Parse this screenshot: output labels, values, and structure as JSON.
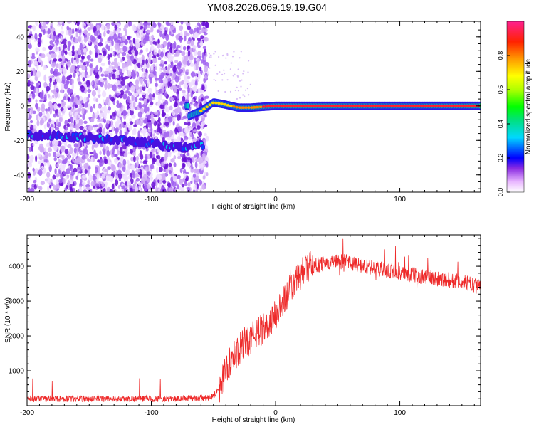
{
  "title": "YM08.2026.069.19.19.G04",
  "chart_data": [
    {
      "type": "heatmap",
      "xlabel": "Height of straight line (km)",
      "ylabel": "Frequency (Hz)",
      "xlim": [
        -200,
        165
      ],
      "ylim": [
        -50,
        49
      ],
      "xticks": [
        -200,
        -100,
        0,
        100
      ],
      "yticks": [
        -40,
        -20,
        0,
        20,
        40
      ],
      "colorbar": {
        "label": "Normalized spectral amplitude",
        "range": [
          0,
          1
        ],
        "ticks": [
          0.0,
          0.2,
          0.4,
          0.6,
          0.8
        ],
        "tick_labels": [
          "0.0",
          "0.2",
          "0.4",
          "0.6",
          "0.8"
        ]
      },
      "ridge": [
        {
          "x": -200,
          "y": -17
        },
        {
          "x": -180,
          "y": -17
        },
        {
          "x": -160,
          "y": -18
        },
        {
          "x": -140,
          "y": -19
        },
        {
          "x": -120,
          "y": -20
        },
        {
          "x": -100,
          "y": -22
        },
        {
          "x": -80,
          "y": -24
        },
        {
          "x": -62,
          "y": -23
        },
        {
          "x": -70,
          "y": -6
        },
        {
          "x": -60,
          "y": -3
        },
        {
          "x": -50,
          "y": 2
        },
        {
          "x": -42,
          "y": 1
        },
        {
          "x": -30,
          "y": -1
        },
        {
          "x": -20,
          "y": -1
        },
        {
          "x": 0,
          "y": 0
        },
        {
          "x": 165,
          "y": 0
        }
      ]
    },
    {
      "type": "line",
      "xlabel": "Height of straight line (km)",
      "ylabel": "SNR (10 * v/v)",
      "xlim": [
        -200,
        165
      ],
      "ylim": [
        0,
        4900
      ],
      "xticks": [
        -200,
        -100,
        0,
        100
      ],
      "yticks": [
        1000,
        2000,
        3000,
        4000
      ],
      "series": [
        {
          "name": "SNR",
          "color": "#ee2a2a",
          "x": [
            -200,
            -150,
            -100,
            -80,
            -60,
            -52,
            -48,
            -44,
            -40,
            -36,
            -30,
            -25,
            -20,
            -15,
            -10,
            -5,
            0,
            5,
            10,
            15,
            20,
            25,
            30,
            35,
            40,
            50,
            60,
            70,
            80,
            100,
            120,
            140,
            150,
            165
          ],
          "y": [
            200,
            200,
            200,
            200,
            220,
            250,
            350,
            600,
            1000,
            1300,
            1600,
            1800,
            1900,
            2100,
            2200,
            2400,
            2600,
            2900,
            3200,
            3500,
            3750,
            3900,
            4000,
            4050,
            4100,
            4150,
            4100,
            4000,
            3950,
            3800,
            3700,
            3600,
            3550,
            3400
          ]
        }
      ]
    }
  ]
}
